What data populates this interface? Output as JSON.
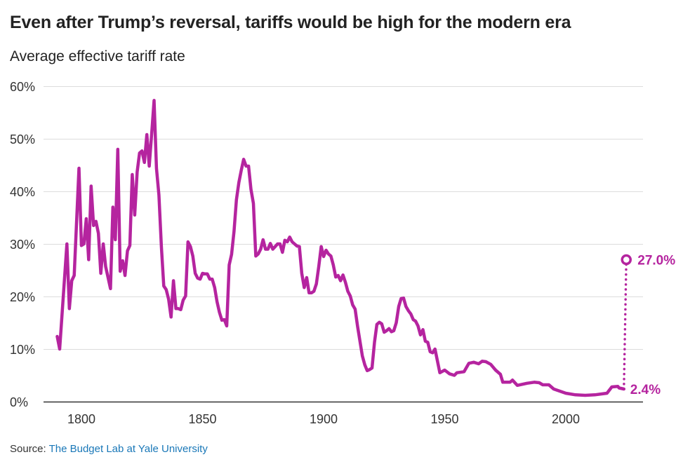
{
  "chart_data": {
    "type": "line",
    "title": "Even after Trump’s reversal, tariffs would be high for the modern era",
    "subtitle": "Average effective tariff rate",
    "xlabel": "",
    "ylabel": "",
    "xlim": [
      1785,
      2030
    ],
    "ylim": [
      0,
      60
    ],
    "grid": true,
    "color": "#b5249f",
    "x_ticks": [
      1800,
      1850,
      1900,
      1950,
      2000
    ],
    "x_tick_labels": [
      "1800",
      "1850",
      "1900",
      "1950",
      "2000"
    ],
    "y_ticks": [
      0,
      10,
      20,
      30,
      40,
      50,
      60
    ],
    "y_tick_labels": [
      "0%",
      "10%",
      "20%",
      "30%",
      "40%",
      "50%",
      "60%"
    ],
    "series": [
      {
        "name": "Average effective tariff rate",
        "x": [
          1790,
          1791,
          1794,
          1795,
          1796,
          1797,
          1799,
          1800,
          1801,
          1802,
          1803,
          1804,
          1805,
          1806,
          1807,
          1808,
          1809,
          1810,
          1812,
          1813,
          1814,
          1815,
          1816,
          1817,
          1818,
          1819,
          1820,
          1821,
          1822,
          1823,
          1824,
          1825,
          1826,
          1827,
          1828,
          1829,
          1830,
          1831,
          1832,
          1833,
          1834,
          1835,
          1836,
          1837,
          1838,
          1839,
          1840,
          1841,
          1842,
          1843,
          1844,
          1845,
          1846,
          1847,
          1848,
          1849,
          1850,
          1851,
          1852,
          1853,
          1854,
          1855,
          1856,
          1857,
          1858,
          1859,
          1860,
          1861,
          1862,
          1863,
          1864,
          1865,
          1866,
          1867,
          1868,
          1869,
          1870,
          1871,
          1872,
          1873,
          1874,
          1875,
          1876,
          1877,
          1878,
          1879,
          1880,
          1881,
          1882,
          1883,
          1884,
          1885,
          1886,
          1887,
          1888,
          1889,
          1890,
          1891,
          1892,
          1893,
          1894,
          1895,
          1896,
          1897,
          1898,
          1899,
          1900,
          1901,
          1902,
          1903,
          1904,
          1905,
          1906,
          1907,
          1908,
          1909,
          1910,
          1911,
          1912,
          1913,
          1914,
          1915,
          1916,
          1917,
          1918,
          1919,
          1920,
          1921,
          1922,
          1923,
          1924,
          1925,
          1926,
          1927,
          1928,
          1929,
          1930,
          1931,
          1932,
          1933,
          1934,
          1935,
          1936,
          1937,
          1938,
          1939,
          1940,
          1941,
          1942,
          1943,
          1944,
          1945,
          1946,
          1948,
          1950,
          1952,
          1954,
          1955,
          1958,
          1960,
          1962,
          1964,
          1965.5,
          1967,
          1969,
          1971,
          1973,
          1974,
          1977,
          1978,
          1980,
          1982,
          1984,
          1987,
          1989,
          1990.5,
          1993,
          1995,
          2000,
          2004,
          2008,
          2012,
          2017,
          2019,
          2021.5,
          2022,
          2024
        ],
        "y": [
          12.4,
          10,
          30,
          17.7,
          23,
          24,
          44.4,
          29.7,
          30,
          34.8,
          27,
          41,
          33.5,
          34.3,
          32,
          24.4,
          30,
          25.7,
          21.5,
          37,
          30.8,
          48,
          24.8,
          26.8,
          24,
          28.7,
          29.7,
          43.2,
          35.5,
          43.7,
          47.3,
          47.7,
          45.5,
          50.8,
          44.8,
          51,
          57.3,
          44.4,
          39.3,
          29.5,
          22,
          21.3,
          19.5,
          16.1,
          23,
          17.7,
          17.7,
          17.5,
          19.3,
          20.1,
          30.4,
          29.5,
          27.7,
          24.4,
          23.5,
          23.3,
          24.4,
          24.3,
          24.3,
          23.3,
          23.3,
          21.7,
          19,
          17,
          15.5,
          15.6,
          14.4,
          26,
          28,
          32.4,
          38.4,
          41.7,
          44,
          46.1,
          44.8,
          44.8,
          40.4,
          37.7,
          27.7,
          28.1,
          29,
          30.8,
          29,
          29,
          30.1,
          29,
          29.5,
          30,
          30,
          28.4,
          30.7,
          30.4,
          31.3,
          30.4,
          30,
          29.6,
          29.5,
          24.4,
          21.7,
          23.6,
          20.7,
          20.7,
          21,
          22.4,
          25.7,
          29.5,
          27.6,
          28.8,
          28.1,
          27.7,
          26,
          23.7,
          24,
          23,
          24.1,
          22.7,
          21,
          20.1,
          18.4,
          17.6,
          14.4,
          11.5,
          8.7,
          7,
          5.9,
          6.1,
          6.4,
          11.3,
          14.7,
          15.1,
          14.8,
          13.2,
          13.5,
          13.9,
          13.3,
          13.5,
          15,
          18.1,
          19.6,
          19.7,
          18.1,
          17.3,
          16.7,
          15.6,
          15.3,
          14.4,
          12.7,
          13.7,
          11.5,
          11.3,
          9.5,
          9.3,
          10,
          5.5,
          6,
          5.3,
          5,
          5.5,
          5.7,
          7.3,
          7.5,
          7.2,
          7.7,
          7.6,
          7.1,
          6,
          5.2,
          3.7,
          3.7,
          4.1,
          3.1,
          3.3,
          3.5,
          3.7,
          3.6,
          3.2,
          3.2,
          2.4,
          1.6,
          1.3,
          1.2,
          1.3,
          1.6,
          2.8,
          2.9,
          2.6,
          2.4
        ]
      }
    ],
    "projection": {
      "from_x": 2024,
      "from_y": 2.4,
      "to_x": 2025,
      "to_y": 27.0,
      "style": "dotted"
    },
    "annotations": [
      {
        "label": "27.0%",
        "x": 2025,
        "y": 27.0
      },
      {
        "label": "2.4%",
        "x": 2024,
        "y": 2.4
      }
    ]
  },
  "source": {
    "prefix": "Source: ",
    "link_text": "The Budget Lab at Yale University"
  }
}
